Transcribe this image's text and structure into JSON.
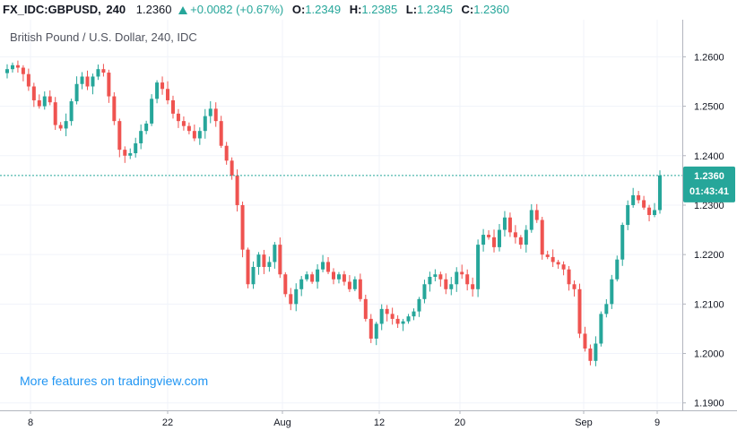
{
  "header": {
    "symbol": "FX_IDC:GBPUSD,",
    "timeframe": "240",
    "last": "1.2360",
    "change": "+0.0082 (+0.67%)",
    "open_label": "O:",
    "open": "1.2349",
    "high_label": "H:",
    "high": "1.2385",
    "low_label": "L:",
    "low": "1.2345",
    "close_label": "C:",
    "close": "1.2360"
  },
  "watermark": "British Pound / U.S. Dollar, 240, IDC",
  "promo": "More features on tradingview.com",
  "colors": {
    "up": "#26a69a",
    "down": "#ef5350",
    "price_line": "#26a69a",
    "grid": "#f0f3fa",
    "axis": "#b2b5be"
  },
  "chart_data": {
    "type": "candlestick",
    "ylim": [
      1.1885,
      1.2675
    ],
    "yticks": [
      "1.1900",
      "1.2000",
      "1.2100",
      "1.2200",
      "1.2300",
      "1.2400",
      "1.2500",
      "1.2600"
    ],
    "xticks": [
      "8",
      "22",
      "Aug",
      "12",
      "20",
      "Sep",
      "9"
    ],
    "price_label": "1.2360",
    "countdown": "01:43:41",
    "last_price": 1.236,
    "closes": [
      1.2575,
      1.2583,
      1.2578,
      1.2565,
      1.254,
      1.2512,
      1.25,
      1.252,
      1.2508,
      1.2462,
      1.2455,
      1.247,
      1.251,
      1.2545,
      1.256,
      1.254,
      1.256,
      1.2575,
      1.2568,
      1.252,
      1.247,
      1.2412,
      1.24,
      1.2405,
      1.2425,
      1.245,
      1.2465,
      1.2515,
      1.2548,
      1.2535,
      1.2512,
      1.2485,
      1.247,
      1.246,
      1.245,
      1.2435,
      1.245,
      1.248,
      1.2495,
      1.247,
      1.242,
      1.239,
      1.236,
      1.23,
      1.221,
      1.214,
      1.2175,
      1.22,
      1.2175,
      1.2185,
      1.222,
      1.216,
      1.212,
      1.21,
      1.213,
      1.215,
      1.216,
      1.2145,
      1.217,
      1.2185,
      1.2165,
      1.215,
      1.216,
      1.2145,
      1.213,
      1.215,
      1.211,
      1.207,
      1.203,
      1.206,
      1.209,
      1.208,
      1.207,
      1.206,
      1.2065,
      1.2075,
      1.2085,
      1.211,
      1.214,
      1.2155,
      1.216,
      1.215,
      1.213,
      1.214,
      1.2165,
      1.216,
      1.214,
      1.213,
      1.222,
      1.224,
      1.2235,
      1.2215,
      1.225,
      1.2275,
      1.2245,
      1.2235,
      1.222,
      1.225,
      1.229,
      1.227,
      1.22,
      1.2195,
      1.2185,
      1.218,
      1.217,
      1.214,
      1.213,
      1.204,
      1.201,
      1.1985,
      1.202,
      1.208,
      1.21,
      1.215,
      1.219,
      1.226,
      1.23,
      1.232,
      1.231,
      1.2295,
      1.228,
      1.229,
      1.236
    ]
  }
}
